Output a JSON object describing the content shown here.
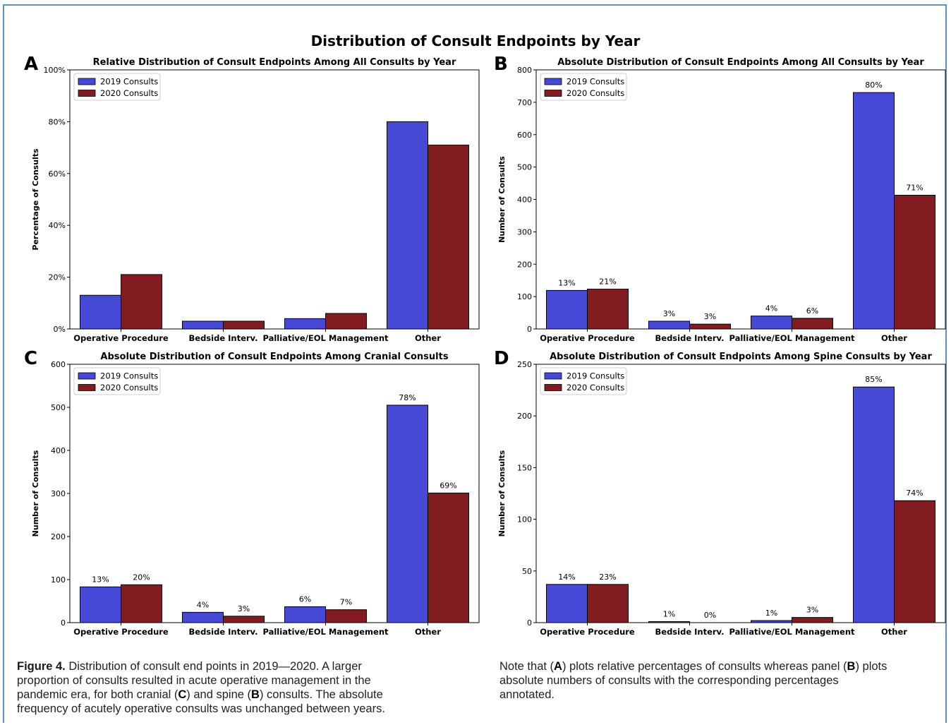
{
  "figure_title": "Distribution of Consult Endpoints by Year",
  "legend": [
    "2019 Consults",
    "2020 Consults"
  ],
  "colors": {
    "2019": "#4649d6",
    "2020": "#831c20"
  },
  "caption": {
    "label": "Figure 4.",
    "left_lines": [
      " Distribution of consult end points in 2019—2020. A larger",
      "proportion of consults resulted in acute operative management in the",
      "pandemic era, for both cranial (|C|) and spine (|B|) consults. The absolute",
      "frequency of acutely operative consults was unchanged between years."
    ],
    "right_lines": [
      "Note that (|A|) plots relative percentages of consults whereas panel (|B|) plots",
      "absolute numbers of consults with the corresponding percentages",
      "annotated."
    ]
  },
  "chart_data": [
    {
      "panel": "A",
      "type": "bar",
      "title": "Relative Distribution of Consult Endpoints Among All Consults by Year",
      "xlabel": "",
      "ylabel": "Percentage of Consults",
      "categories": [
        "Operative Procedure",
        "Bedside Interv.",
        "Palliative/EOL Management",
        "Other"
      ],
      "series": [
        {
          "name": "2019 Consults",
          "values": [
            13,
            3,
            4,
            80
          ]
        },
        {
          "name": "2020 Consults",
          "values": [
            21,
            3,
            6,
            71
          ]
        }
      ],
      "ylim": [
        0,
        100
      ],
      "yticks": [
        0,
        20,
        40,
        60,
        80,
        100
      ],
      "ytick_labels": [
        "0%",
        "20%",
        "40%",
        "60%",
        "80%",
        "100%"
      ],
      "legend_position": "top-left",
      "grid": false
    },
    {
      "panel": "B",
      "type": "bar",
      "title": "Absolute Distribution of Consult Endpoints Among All Consults by Year",
      "xlabel": "",
      "ylabel": "Number of Consults",
      "categories": [
        "Operative Procedure",
        "Bedside Interv.",
        "Palliative/EOL Management",
        "Other"
      ],
      "series": [
        {
          "name": "2019 Consults",
          "values": [
            119,
            24,
            40,
            730
          ],
          "labels": [
            "13%",
            "3%",
            "4%",
            "80%"
          ]
        },
        {
          "name": "2020 Consults",
          "values": [
            123,
            15,
            33,
            413
          ],
          "labels": [
            "21%",
            "3%",
            "6%",
            "71%"
          ]
        }
      ],
      "ylim": [
        0,
        800
      ],
      "yticks": [
        0,
        100,
        200,
        300,
        400,
        500,
        600,
        700,
        800
      ],
      "ytick_labels": [
        "0",
        "100",
        "200",
        "300",
        "400",
        "500",
        "600",
        "700",
        "800"
      ],
      "legend_position": "top-left",
      "grid": false
    },
    {
      "panel": "C",
      "type": "bar",
      "title": "Absolute Distribution of Consult Endpoints Among Cranial Consults",
      "xlabel": "",
      "ylabel": "Number of Consults",
      "categories": [
        "Operative Procedure",
        "Bedside Interv.",
        "Palliative/EOL Management",
        "Other"
      ],
      "series": [
        {
          "name": "2019 Consults",
          "values": [
            83,
            24,
            37,
            505
          ],
          "labels": [
            "13%",
            "4%",
            "6%",
            "78%"
          ]
        },
        {
          "name": "2020 Consults",
          "values": [
            88,
            15,
            30,
            301
          ],
          "labels": [
            "20%",
            "3%",
            "7%",
            "69%"
          ]
        }
      ],
      "ylim": [
        0,
        600
      ],
      "yticks": [
        0,
        100,
        200,
        300,
        400,
        500,
        600
      ],
      "ytick_labels": [
        "0",
        "100",
        "200",
        "300",
        "400",
        "500",
        "600"
      ],
      "legend_position": "top-left",
      "grid": false
    },
    {
      "panel": "D",
      "type": "bar",
      "title": "Absolute Distribution of Consult Endpoints Among Spine Consults by Year",
      "xlabel": "",
      "ylabel": "Number of Consults",
      "categories": [
        "Operative Procedure",
        "Bedside Interv.",
        "Palliative/EOL Management",
        "Other"
      ],
      "series": [
        {
          "name": "2019 Consults",
          "values": [
            37,
            1,
            2,
            228
          ],
          "labels": [
            "14%",
            "1%",
            "1%",
            "85%"
          ]
        },
        {
          "name": "2020 Consults",
          "values": [
            37,
            0,
            5,
            118
          ],
          "labels": [
            "23%",
            "0%",
            "3%",
            "74%"
          ]
        }
      ],
      "ylim": [
        0,
        250
      ],
      "yticks": [
        0,
        50,
        100,
        150,
        200,
        250
      ],
      "ytick_labels": [
        "0",
        "50",
        "100",
        "150",
        "200",
        "250"
      ],
      "legend_position": "top-left",
      "grid": false
    }
  ]
}
